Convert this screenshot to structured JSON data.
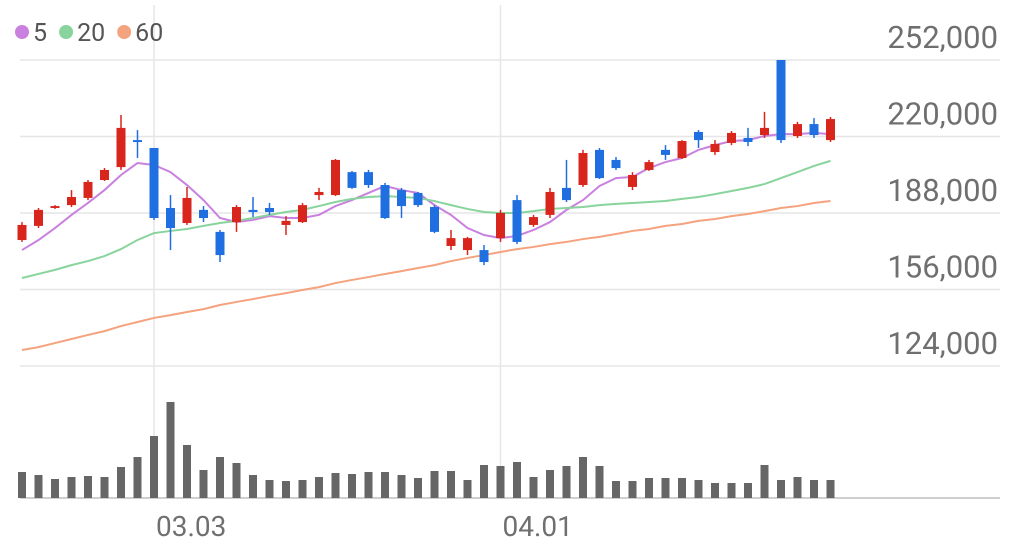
{
  "chart_data": {
    "type": "candlestick",
    "categories": [
      null,
      null,
      null,
      null,
      null,
      null,
      null,
      null,
      "03.03",
      null,
      null,
      null,
      null,
      null,
      null,
      null,
      null,
      null,
      null,
      null,
      null,
      null,
      null,
      null,
      null,
      null,
      null,
      null,
      null,
      "04.01",
      null,
      null,
      null,
      null,
      null,
      null,
      null,
      null,
      null,
      null,
      null,
      null,
      null,
      null,
      null,
      null,
      null,
      null,
      null,
      null
    ],
    "open": [
      176700,
      182600,
      190100,
      191300,
      194300,
      201800,
      207200,
      218500,
      215200,
      190100,
      183800,
      189300,
      180100,
      184200,
      189300,
      190100,
      183000,
      184200,
      195500,
      195500,
      205100,
      205100,
      199700,
      197600,
      196400,
      190500,
      174200,
      172500,
      172500,
      177500,
      193400,
      183000,
      187200,
      198500,
      199700,
      214400,
      210200,
      198900,
      206000,
      214400,
      211000,
      221900,
      213500,
      217300,
      219400,
      220600,
      252000,
      220200,
      225200,
      218500
    ],
    "high": [
      184200,
      190100,
      191300,
      197600,
      201800,
      206800,
      229000,
      222700,
      215200,
      195500,
      198900,
      190900,
      180900,
      191300,
      194700,
      192200,
      186700,
      192200,
      198500,
      210600,
      205600,
      206000,
      200600,
      198500,
      196800,
      191300,
      180900,
      178000,
      174600,
      189300,
      195500,
      187200,
      198500,
      210200,
      214400,
      215200,
      211400,
      205100,
      210200,
      216400,
      218500,
      222700,
      218500,
      222300,
      223600,
      230300,
      252000,
      226100,
      227700,
      228200
    ],
    "low": [
      175900,
      181700,
      189700,
      190500,
      193400,
      201400,
      206000,
      211000,
      185100,
      172500,
      183000,
      184200,
      167500,
      180100,
      186300,
      187200,
      178800,
      183800,
      193400,
      195100,
      198100,
      198500,
      185500,
      185900,
      190500,
      179600,
      172500,
      170400,
      166200,
      175900,
      175000,
      182200,
      185900,
      192600,
      198900,
      202200,
      206000,
      197600,
      205600,
      210200,
      210600,
      215200,
      212300,
      216400,
      216000,
      219400,
      217300,
      219400,
      219400,
      217700
    ],
    "close": [
      183000,
      189300,
      190900,
      194700,
      201000,
      206000,
      223600,
      217700,
      185900,
      181700,
      194300,
      185900,
      170400,
      190500,
      188400,
      188400,
      184700,
      191300,
      196800,
      210200,
      198500,
      199700,
      185900,
      190900,
      191300,
      180100,
      177500,
      177500,
      167500,
      188000,
      175900,
      186300,
      196800,
      193400,
      213100,
      202600,
      206800,
      203900,
      209300,
      212300,
      218100,
      218500,
      216900,
      221500,
      217700,
      223600,
      218500,
      225200,
      220600,
      227300
    ],
    "up_color": "#d9261c",
    "down_color": "#1f6fe0",
    "series": [
      {
        "name": "5",
        "color": "#c981e0",
        "values": [
          172500,
          176700,
          181700,
          187200,
          192200,
          197600,
          203900,
          208900,
          208100,
          205100,
          199700,
          193400,
          185900,
          184200,
          185100,
          186700,
          185900,
          185900,
          187200,
          190900,
          193400,
          196400,
          199300,
          197600,
          196400,
          191300,
          187200,
          181700,
          178800,
          177500,
          178400,
          180900,
          184200,
          189300,
          193400,
          199300,
          202600,
          203100,
          206800,
          209300,
          211000,
          214400,
          216400,
          218100,
          218500,
          220200,
          221000,
          221000,
          221500,
          221000
        ]
      },
      {
        "name": "20",
        "color": "#88d49c",
        "values": [
          160800,
          162500,
          164200,
          166200,
          167900,
          170000,
          172900,
          176700,
          179600,
          180500,
          181300,
          182600,
          183800,
          184700,
          185900,
          187200,
          188400,
          189300,
          190900,
          192600,
          193900,
          194700,
          195100,
          194700,
          194300,
          193000,
          191300,
          189700,
          188400,
          188000,
          188000,
          188800,
          189700,
          190100,
          190500,
          191300,
          191800,
          192200,
          192600,
          193000,
          193900,
          194700,
          195900,
          197200,
          198500,
          200100,
          202600,
          205100,
          207700,
          209800
        ]
      },
      {
        "name": "60",
        "color": "#f5a27e",
        "values": [
          130700,
          131900,
          133600,
          135300,
          137000,
          138600,
          140700,
          142400,
          144100,
          145300,
          146600,
          147800,
          149500,
          150800,
          152000,
          153300,
          154500,
          155800,
          157000,
          158700,
          160000,
          161200,
          162500,
          163700,
          165000,
          166200,
          167900,
          169200,
          170400,
          171700,
          172900,
          173800,
          175000,
          175900,
          177100,
          178000,
          179200,
          180500,
          181300,
          182600,
          183400,
          184700,
          185500,
          186700,
          187600,
          188800,
          190100,
          190900,
          192200,
          193000
        ]
      }
    ],
    "volume": [
      26,
      23,
      19,
      21,
      22,
      21,
      31,
      41,
      62,
      96,
      53,
      28,
      41,
      35,
      23,
      18,
      17,
      18,
      21,
      25,
      24,
      26,
      26,
      23,
      20,
      27,
      27,
      18,
      33,
      32,
      36,
      21,
      28,
      32,
      41,
      32,
      17,
      17,
      20,
      20,
      20,
      18,
      15,
      15,
      15,
      33,
      18,
      21,
      18,
      18
    ],
    "volume_color": "#666666",
    "ylim": [
      124000,
      252000
    ],
    "yticks": [
      {
        "value": 252000,
        "label": "252,000"
      },
      {
        "value": 220000,
        "label": "220,000"
      },
      {
        "value": 188000,
        "label": "188,000"
      },
      {
        "value": 156000,
        "label": "156,000"
      },
      {
        "value": 124000,
        "label": "124,000"
      }
    ],
    "grid": true
  }
}
